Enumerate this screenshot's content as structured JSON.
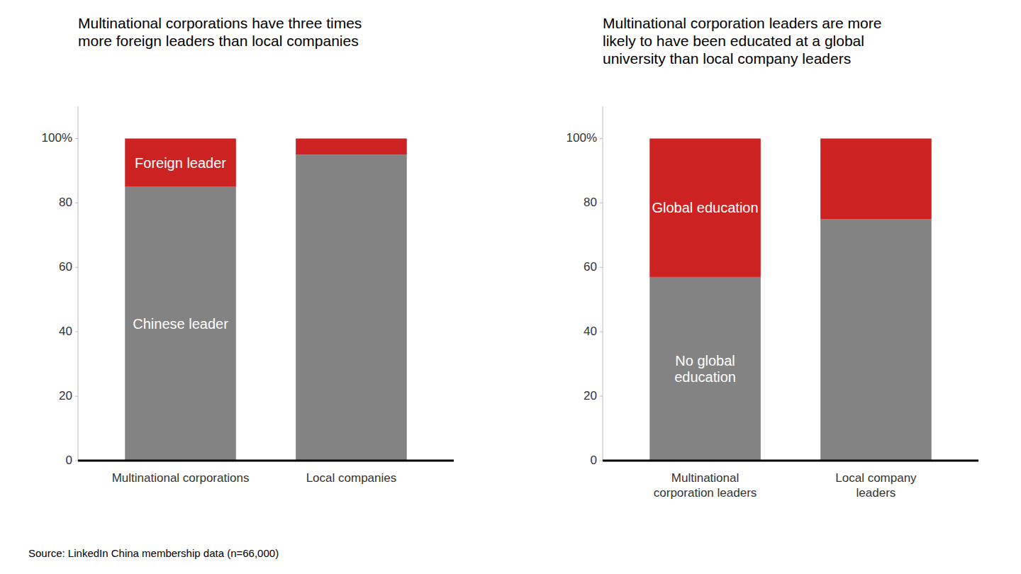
{
  "chart_data": [
    {
      "type": "bar",
      "stacked": true,
      "grid": false,
      "title": "Multinational corporations have three times\nmore foreign leaders than local companies",
      "categories": [
        "Multinational corporations",
        "Local companies"
      ],
      "series": [
        {
          "name": "Chinese leader",
          "color": "#838383",
          "values": [
            85,
            95
          ]
        },
        {
          "name": "Foreign leader",
          "color": "#CC2222",
          "values": [
            15,
            5
          ]
        }
      ],
      "ylim": [
        0,
        110
      ],
      "yticks": [
        0,
        20,
        40,
        60,
        80,
        {
          "value": 100,
          "label": "100%"
        }
      ],
      "annotations": [
        "Source: LinkedIn China membership data (n=66,000)"
      ]
    },
    {
      "type": "bar",
      "stacked": true,
      "grid": false,
      "title": "Multinational corporation leaders are more\nlikely to have been educated at a global\nuniversity than local company leaders",
      "categories": [
        "Multinational\ncorporation leaders",
        "Local company\nleaders"
      ],
      "series": [
        {
          "name": "No global\neducation",
          "color": "#838383",
          "values": [
            57,
            75
          ]
        },
        {
          "name": "Global education",
          "color": "#CC2222",
          "values": [
            43,
            25
          ]
        }
      ],
      "ylim": [
        0,
        110
      ],
      "yticks": [
        0,
        20,
        40,
        60,
        80,
        {
          "value": 100,
          "label": "100%"
        }
      ]
    }
  ]
}
